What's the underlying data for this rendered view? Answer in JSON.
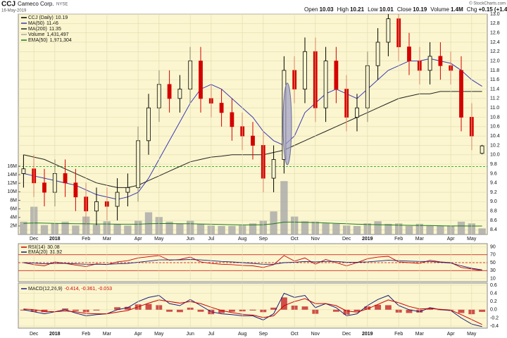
{
  "header": {
    "symbol": "CCJ",
    "name": "Cameco Corp.",
    "exchange": "NYSE",
    "date": "16-May-2019",
    "copyright": "© StockCharts.com",
    "quote": [
      {
        "label": "Open",
        "value": "10.03"
      },
      {
        "label": "High",
        "value": "10.21"
      },
      {
        "label": "Low",
        "value": "10.01"
      },
      {
        "label": "Close",
        "value": "10.19"
      },
      {
        "label": "Volume",
        "value": "1.4M"
      },
      {
        "label": "Chg",
        "value": "+0.15 (+1.49%)"
      }
    ]
  },
  "chart_data": [
    {
      "type": "candlestick",
      "categories": [
        null,
        "Dec",
        null,
        "2018",
        null,
        null,
        "Feb",
        null,
        "Mar",
        null,
        null,
        "Apr",
        null,
        "May",
        null,
        null,
        "Jun",
        null,
        "Jul",
        null,
        null,
        "Aug",
        null,
        "Sep",
        null,
        null,
        "Oct",
        null,
        "Nov",
        null,
        null,
        "Dec",
        null,
        "2019",
        null,
        null,
        "Feb",
        null,
        "Mar",
        null,
        null,
        "Apr",
        null,
        "May",
        null
      ],
      "open": [
        9.6,
        9.7,
        9.4,
        9.2,
        9.6,
        9.4,
        9.1,
        8.8,
        9.0,
        8.9,
        9.2,
        9.3,
        10.3,
        11.0,
        11.5,
        11.2,
        11.4,
        12.0,
        11.2,
        11.1,
        10.9,
        10.6,
        10.4,
        10.2,
        9.5,
        9.9,
        11.8,
        11.4,
        12.2,
        11.0,
        12.0,
        11.4,
        10.8,
        11.0,
        11.9,
        12.4,
        12.9,
        12.3,
        12.0,
        11.8,
        12.1,
        11.9,
        11.8,
        10.8,
        10.03
      ],
      "high": [
        10.0,
        10.0,
        9.7,
        9.9,
        9.9,
        9.7,
        9.4,
        9.3,
        9.3,
        9.5,
        9.6,
        10.6,
        11.3,
        11.8,
        11.8,
        11.7,
        12.3,
        12.3,
        11.5,
        11.4,
        11.2,
        10.9,
        10.7,
        10.5,
        10.2,
        12.1,
        12.1,
        12.5,
        12.5,
        12.3,
        12.3,
        11.7,
        11.3,
        12.2,
        12.7,
        13.0,
        13.0,
        12.6,
        12.3,
        12.4,
        12.4,
        12.2,
        12.1,
        11.1,
        10.21
      ],
      "low": [
        9.3,
        9.1,
        8.9,
        8.9,
        9.1,
        8.8,
        8.5,
        8.5,
        8.6,
        8.6,
        8.9,
        9.0,
        10.0,
        10.7,
        10.9,
        10.9,
        11.1,
        10.9,
        10.8,
        10.6,
        10.3,
        10.1,
        9.9,
        9.2,
        9.2,
        9.6,
        11.1,
        11.1,
        10.7,
        10.7,
        11.1,
        10.5,
        10.5,
        10.7,
        11.6,
        12.1,
        12.0,
        11.7,
        11.5,
        11.5,
        11.6,
        11.5,
        10.5,
        10.1,
        10.01
      ],
      "close": [
        9.7,
        9.4,
        9.2,
        9.6,
        9.4,
        9.1,
        8.8,
        9.0,
        8.9,
        9.2,
        9.3,
        10.3,
        11.0,
        11.5,
        11.2,
        11.4,
        12.0,
        11.2,
        11.1,
        10.9,
        10.6,
        10.4,
        10.2,
        9.5,
        9.9,
        11.8,
        11.4,
        12.2,
        11.0,
        12.0,
        11.4,
        10.8,
        11.0,
        11.9,
        12.4,
        12.9,
        12.3,
        12.0,
        11.8,
        12.1,
        11.9,
        11.8,
        10.8,
        10.4,
        10.19
      ],
      "up_color": "#000000",
      "down_color": "#d40000",
      "legend_label": "CCJ (Daily)",
      "legend_value": 10.19,
      "series": [
        {
          "name": "MA(50)",
          "legend_value": 11.46,
          "color": "#3a3ab8",
          "values": [
            9.6,
            9.55,
            9.5,
            9.45,
            9.4,
            9.35,
            9.25,
            9.15,
            9.1,
            9.05,
            9.1,
            9.2,
            9.5,
            9.9,
            10.3,
            10.7,
            11.1,
            11.4,
            11.5,
            11.4,
            11.2,
            11.0,
            10.8,
            10.5,
            10.3,
            10.2,
            10.4,
            10.9,
            11.1,
            11.3,
            11.4,
            11.3,
            11.2,
            11.4,
            11.6,
            11.8,
            11.9,
            12.0,
            12.0,
            12.05,
            12.0,
            11.95,
            11.8,
            11.6,
            11.46
          ]
        },
        {
          "name": "MA(200)",
          "legend_value": 11.35,
          "color": "#222222",
          "values": [
            10.0,
            9.95,
            9.9,
            9.8,
            9.7,
            9.6,
            9.5,
            9.4,
            9.35,
            9.3,
            9.3,
            9.35,
            9.45,
            9.55,
            9.65,
            9.75,
            9.85,
            9.9,
            9.95,
            9.97,
            10.0,
            10.0,
            10.0,
            10.0,
            10.05,
            10.1,
            10.2,
            10.3,
            10.4,
            10.5,
            10.6,
            10.7,
            10.8,
            10.9,
            11.0,
            11.1,
            11.2,
            11.25,
            11.3,
            11.3,
            11.35,
            11.35,
            11.35,
            11.35,
            11.35
          ]
        }
      ],
      "volume": {
        "name": "Volume",
        "legend_value": "1,431,497",
        "color": "#a8a8a8",
        "values": [
          3000000,
          6500000,
          2200000,
          2600000,
          3000000,
          2100000,
          4200000,
          2300000,
          3100000,
          2500000,
          2100000,
          3200000,
          5200000,
          4100000,
          3000000,
          2600000,
          3200000,
          2500000,
          2100000,
          2000000,
          2000000,
          2100000,
          2600000,
          3200000,
          5400000,
          12500000,
          4200000,
          3100000,
          3000000,
          2600000,
          2500000,
          2100000,
          2000000,
          2600000,
          3100000,
          2500000,
          2600000,
          2000000,
          2500000,
          2100000,
          2000000,
          2000000,
          3000000,
          2600000,
          1431497
        ]
      },
      "volume_ema": {
        "name": "EMA(50)",
        "legend_value": "1,971,304",
        "color": "#1a7a1a",
        "values": [
          2600000,
          2700000,
          2650000,
          2600000,
          2550000,
          2500000,
          2500000,
          2450000,
          2450000,
          2400000,
          2400000,
          2400000,
          2500000,
          2550000,
          2550000,
          2500000,
          2500000,
          2450000,
          2400000,
          2350000,
          2300000,
          2250000,
          2250000,
          2300000,
          2500000,
          2900000,
          2900000,
          2850000,
          2800000,
          2700000,
          2600000,
          2500000,
          2400000,
          2350000,
          2300000,
          2250000,
          2200000,
          2150000,
          2100000,
          2100000,
          2050000,
          2000000,
          2000000,
          1980000,
          1971304
        ]
      },
      "ylim": [
        8.3,
        13.0
      ],
      "yticks": [
        8.4,
        8.6,
        8.8,
        {
          "value": 9,
          "label": "9.0"
        },
        9.2,
        9.4,
        9.6,
        9.8,
        {
          "value": 10,
          "label": "10.0"
        },
        10.2,
        10.4,
        10.6,
        10.8,
        {
          "value": 11,
          "label": "11.0"
        },
        11.2,
        11.4,
        11.6,
        11.8,
        {
          "value": 12,
          "label": "12.0"
        },
        12.2,
        12.4,
        12.6,
        12.8,
        {
          "value": 13,
          "label": "13.0"
        }
      ],
      "y2lim": [
        0,
        16000000
      ],
      "y2ticks": [
        {
          "value": 2000000,
          "label": "2M"
        },
        {
          "value": 4000000,
          "label": "4M"
        },
        {
          "value": 6000000,
          "label": "6M"
        },
        {
          "value": 8000000,
          "label": "8M"
        },
        {
          "value": 10000000,
          "label": "10M"
        },
        {
          "value": 12000000,
          "label": "12M"
        },
        {
          "value": 14000000,
          "label": "14M"
        },
        {
          "value": 16000000,
          "label": "16M"
        }
      ],
      "reference_lines": [
        {
          "value": 9.75,
          "color": "#22aa22",
          "dashed": true
        }
      ],
      "grid": true
    },
    {
      "type": "line",
      "series": [
        {
          "name": "RSI(14)",
          "legend_value": 30.08,
          "color": "#cc0000",
          "values": [
            50,
            45,
            42,
            52,
            48,
            44,
            40,
            47,
            45,
            52,
            55,
            62,
            65,
            68,
            56,
            58,
            64,
            52,
            48,
            46,
            45,
            43,
            42,
            38,
            45,
            68,
            54,
            62,
            46,
            58,
            50,
            42,
            50,
            60,
            64,
            66,
            52,
            50,
            48,
            56,
            52,
            50,
            38,
            34,
            30.08
          ]
        },
        {
          "name": "EMA(20)",
          "legend_value": 31.92,
          "color": "#1a1a80",
          "values": [
            50,
            49,
            47,
            48,
            48,
            47,
            46,
            46,
            46,
            47,
            48,
            51,
            54,
            57,
            57,
            57,
            58,
            57,
            55,
            53,
            52,
            50,
            48,
            46,
            46,
            50,
            51,
            53,
            52,
            53,
            53,
            51,
            51,
            52,
            54,
            56,
            55,
            54,
            53,
            53,
            51,
            49,
            42,
            36,
            31.92
          ]
        }
      ],
      "ylim": [
        2,
        98
      ],
      "yticks": [
        10,
        30,
        50,
        70,
        90
      ],
      "reference_lines": [
        {
          "value": 70,
          "color": "#cc0000",
          "dashed": false
        },
        {
          "value": 50,
          "color": "#cc0000",
          "dashed": true
        },
        {
          "value": 30,
          "color": "#cc0000",
          "dashed": false
        }
      ],
      "grid": true
    },
    {
      "type": "macd",
      "title": "MACD(12,26,9)",
      "legend_text": "-0.414, -0.361, -0.053",
      "categories": [
        null,
        "Dec",
        null,
        "2018",
        null,
        null,
        "Feb",
        null,
        "Mar",
        null,
        null,
        "Apr",
        null,
        "May",
        null,
        null,
        "Jun",
        null,
        "Jul",
        null,
        null,
        "Aug",
        null,
        "Sep",
        null,
        null,
        "Oct",
        null,
        "Nov",
        null,
        null,
        "Dec",
        null,
        "2019",
        null,
        null,
        "Feb",
        null,
        "Mar",
        null,
        null,
        "Apr",
        null,
        "May",
        null
      ],
      "series": [
        {
          "color": "#1a1a80",
          "values": [
            0.0,
            -0.05,
            -0.1,
            -0.05,
            0.0,
            -0.08,
            -0.15,
            -0.12,
            -0.1,
            0.0,
            0.05,
            0.2,
            0.3,
            0.35,
            0.15,
            0.1,
            0.25,
            0.1,
            -0.05,
            -0.1,
            -0.12,
            -0.15,
            -0.15,
            -0.25,
            -0.1,
            0.4,
            0.3,
            0.35,
            0.05,
            0.15,
            0.05,
            -0.15,
            -0.1,
            0.1,
            0.25,
            0.35,
            0.1,
            0.0,
            -0.05,
            0.05,
            0.0,
            -0.02,
            -0.2,
            -0.35,
            -0.414
          ]
        },
        {
          "color": "#cc0000",
          "values": [
            0.02,
            0.0,
            -0.04,
            -0.05,
            -0.03,
            -0.05,
            -0.09,
            -0.1,
            -0.1,
            -0.06,
            -0.02,
            0.07,
            0.16,
            0.24,
            0.2,
            0.16,
            0.2,
            0.15,
            0.06,
            -0.02,
            -0.07,
            -0.11,
            -0.13,
            -0.19,
            -0.15,
            0.1,
            0.2,
            0.27,
            0.15,
            0.15,
            0.1,
            -0.03,
            -0.06,
            0.02,
            0.13,
            0.24,
            0.17,
            0.08,
            0.02,
            0.03,
            0.01,
            -0.01,
            -0.12,
            -0.24,
            -0.361
          ]
        },
        {
          "color": "#c83030",
          "kind": "bar",
          "values": [
            -0.02,
            -0.05,
            -0.06,
            0.0,
            0.03,
            -0.03,
            -0.06,
            -0.02,
            0.0,
            0.06,
            0.07,
            0.13,
            0.14,
            0.11,
            -0.05,
            -0.06,
            0.05,
            -0.05,
            -0.11,
            -0.08,
            -0.05,
            -0.04,
            -0.02,
            -0.06,
            0.05,
            0.3,
            0.1,
            0.08,
            -0.1,
            0.0,
            -0.05,
            -0.12,
            -0.04,
            0.08,
            0.12,
            0.11,
            -0.07,
            -0.08,
            -0.07,
            0.02,
            -0.01,
            -0.01,
            -0.08,
            -0.11,
            -0.053
          ]
        }
      ],
      "ylim": [
        -0.45,
        0.65
      ],
      "yticks": [
        -0.4,
        -0.2,
        {
          "value": 0,
          "label": "0.0"
        },
        0.2,
        0.4,
        0.6
      ],
      "grid": true
    }
  ]
}
